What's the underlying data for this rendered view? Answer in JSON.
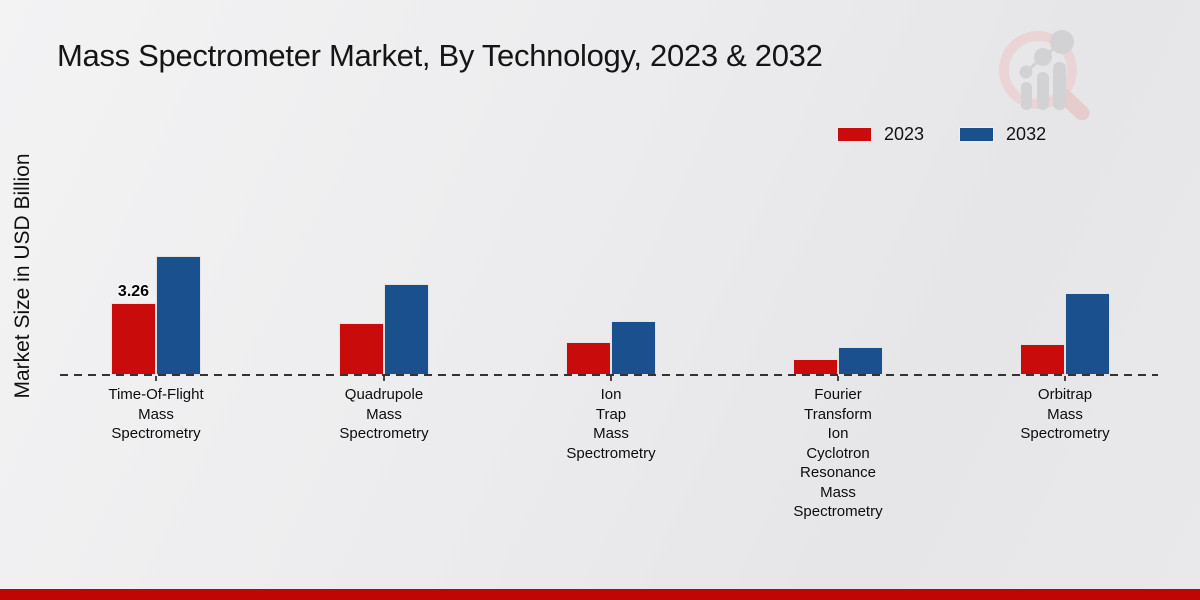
{
  "header": {
    "title": "Mass Spectrometer Market, By Technology, 2023 & 2032"
  },
  "legend": {
    "position": "top-right",
    "items": [
      {
        "label": "2023",
        "color": "#c90b0b"
      },
      {
        "label": "2032",
        "color": "#1b508e"
      }
    ]
  },
  "logo": {
    "name": "market-research-future-watermark"
  },
  "footer": {
    "accent_color": "#c00505"
  },
  "chart_data": {
    "type": "bar",
    "title": "Mass Spectrometer Market, By Technology, 2023 & 2032",
    "xlabel": "",
    "ylabel": "Market Size in USD Billion",
    "ylim": [
      0,
      6.5
    ],
    "grid": false,
    "y_tick_labels_visible": false,
    "baseline_style": "dashed",
    "legend_position": "top-right",
    "categories": [
      "Time-Of-Flight Mass Spectrometry",
      "Quadrupole Mass Spectrometry",
      "Ion Trap Mass Spectrometry",
      "Fourier Transform Ion Cyclotron Resonance Mass Spectrometry",
      "Orbitrap Mass Spectrometry"
    ],
    "category_label_lines": [
      [
        "Time-Of-Flight",
        "Mass",
        "Spectrometry"
      ],
      [
        "Quadrupole",
        "Mass",
        "Spectrometry"
      ],
      [
        "Ion",
        "Trap",
        "Mass",
        "Spectrometry"
      ],
      [
        "Fourier",
        "Transform",
        "Ion",
        "Cyclotron",
        "Resonance",
        "Mass",
        "Spectrometry"
      ],
      [
        "Orbitrap",
        "Mass",
        "Spectrometry"
      ]
    ],
    "series": [
      {
        "name": "2023",
        "color": "#c90b0b",
        "values": [
          3.26,
          2.35,
          1.5,
          0.72,
          1.4
        ]
      },
      {
        "name": "2032",
        "color": "#1b508e",
        "values": [
          5.4,
          4.1,
          2.45,
          1.27,
          3.7
        ]
      }
    ],
    "annotations": [
      {
        "series": "2023",
        "category": "Time-Of-Flight Mass Spectrometry",
        "text": "3.26"
      }
    ]
  }
}
